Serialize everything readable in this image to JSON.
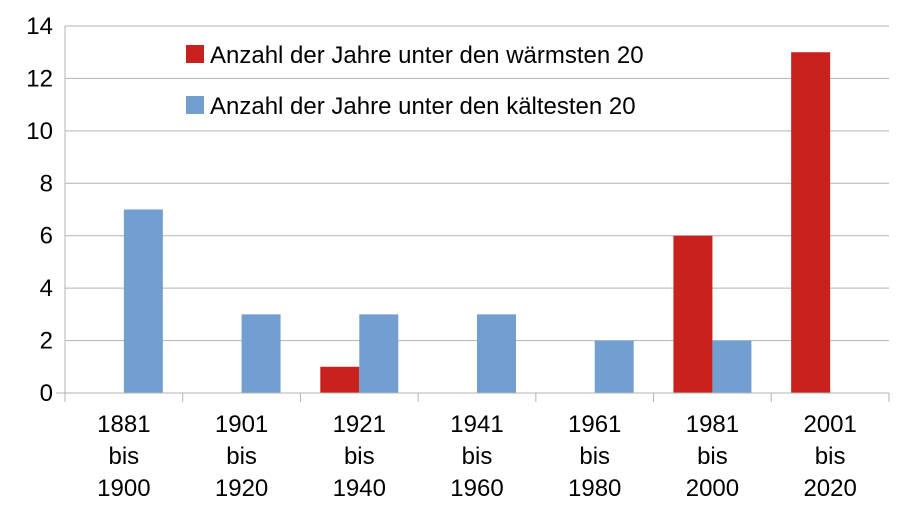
{
  "chart_data": {
    "type": "bar",
    "title": "",
    "xlabel": "",
    "ylabel": "",
    "ylim": [
      0,
      14
    ],
    "yticks": [
      0,
      2,
      4,
      6,
      8,
      10,
      12,
      14
    ],
    "ytick_labels": [
      "0",
      "2",
      "4",
      "6",
      "8",
      "10",
      "12",
      "14"
    ],
    "grid": true,
    "legend_position": "top-center",
    "categories": [
      [
        "1881",
        "bis",
        "1900"
      ],
      [
        "1901",
        "bis",
        "1920"
      ],
      [
        "1921",
        "bis",
        "1940"
      ],
      [
        "1941",
        "bis",
        "1960"
      ],
      [
        "1961",
        "bis",
        "1980"
      ],
      [
        "1981",
        "bis",
        "2000"
      ],
      [
        "2001",
        "bis",
        "2020"
      ]
    ],
    "series": [
      {
        "name": "Anzahl der Jahre unter den wärmsten 20",
        "color": "#c9211e",
        "values": [
          0,
          0,
          1,
          0,
          0,
          6,
          13
        ]
      },
      {
        "name": "Anzahl der Jahre unter den kältesten 20",
        "color": "#729fcf",
        "values": [
          7,
          3,
          3,
          3,
          2,
          2,
          0
        ]
      }
    ]
  }
}
